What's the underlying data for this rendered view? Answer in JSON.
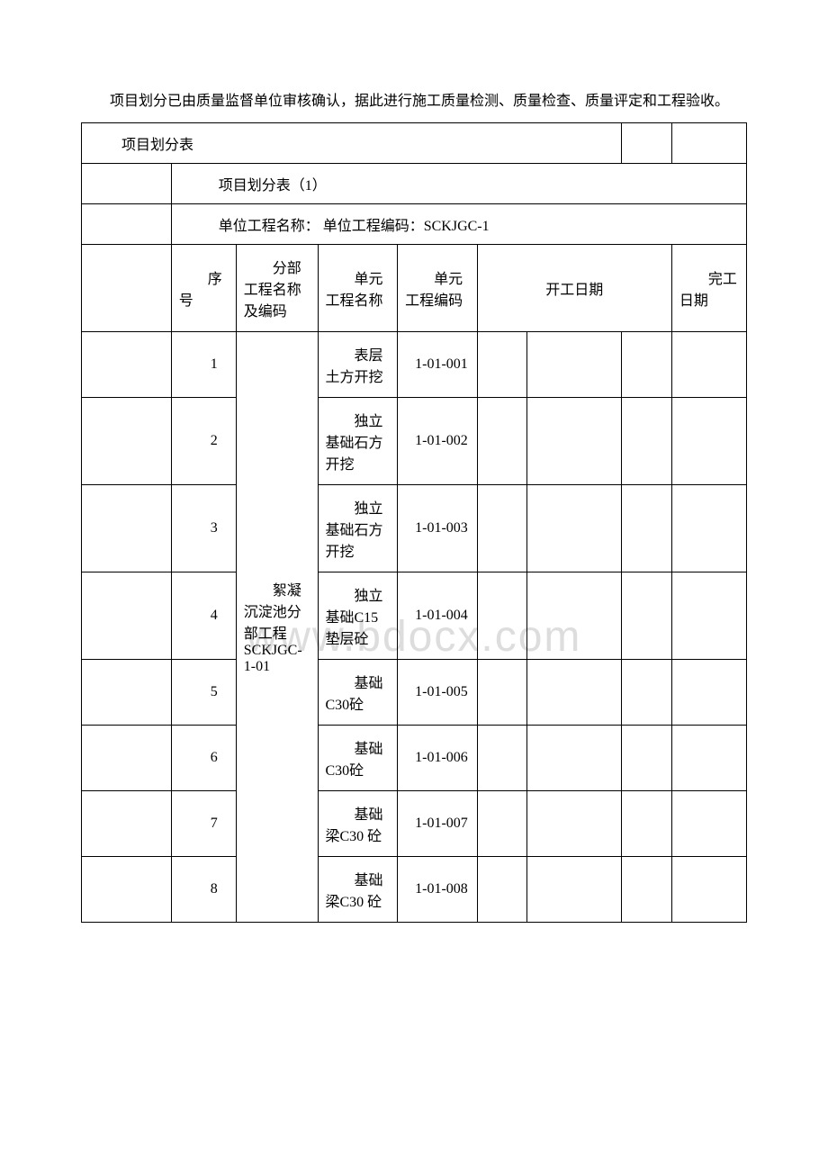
{
  "intro": "项目划分已由质量监督单位审核确认，据此进行施工质量检测、质量检查、质量评定和工程验收。",
  "table_title": "项目划分表",
  "subtitle": "项目划分表（1）",
  "unit_info": "单位工程名称：  单位工程编码：SCKJGC-1",
  "headers": {
    "seq": "序号",
    "dept": "分部工程名称及编码",
    "unit_name": "单元工程名称",
    "unit_code": "单元工程编码",
    "start_date": "开工日期",
    "end_date": "完工日期"
  },
  "dept_name": "絮凝沉淀池分部工程SCKJGC-1-01",
  "rows": [
    {
      "seq": "1",
      "unit_name": "表层土方开挖",
      "unit_code": "1-01-001"
    },
    {
      "seq": "2",
      "unit_name": "独立基础石方开挖",
      "unit_code": "1-01-002"
    },
    {
      "seq": "3",
      "unit_name": "独立基础石方开挖",
      "unit_code": "1-01-003"
    },
    {
      "seq": "4",
      "unit_name": "独立基础C15 垫层砼",
      "unit_code": "1-01-004"
    },
    {
      "seq": "5",
      "unit_name": "基础 C30砼",
      "unit_code": "1-01-005"
    },
    {
      "seq": "6",
      "unit_name": "基础 C30砼",
      "unit_code": "1-01-006"
    },
    {
      "seq": "7",
      "unit_name": "基础梁C30 砼",
      "unit_code": "1-01-007"
    },
    {
      "seq": "8",
      "unit_name": "基础梁C30 砼",
      "unit_code": "1-01-008"
    }
  ],
  "watermark": "www.bdocx.com",
  "colors": {
    "text": "#000000",
    "border": "#000000",
    "background": "#ffffff",
    "watermark": "#dddddd"
  }
}
